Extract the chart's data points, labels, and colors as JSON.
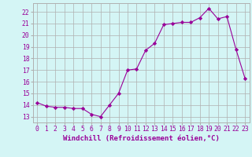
{
  "x": [
    0,
    1,
    2,
    3,
    4,
    5,
    6,
    7,
    8,
    9,
    10,
    11,
    12,
    13,
    14,
    15,
    16,
    17,
    18,
    19,
    20,
    21,
    22,
    23
  ],
  "y": [
    14.2,
    13.9,
    13.8,
    13.8,
    13.7,
    13.7,
    13.2,
    13.0,
    14.0,
    15.0,
    17.0,
    17.1,
    18.7,
    19.3,
    20.9,
    21.0,
    21.1,
    21.1,
    21.5,
    22.3,
    21.4,
    21.6,
    18.8,
    16.3
  ],
  "line_color": "#990099",
  "marker": "D",
  "marker_size": 2.2,
  "bg_color": "#d4f5f5",
  "grid_color": "#b0b0b0",
  "xlabel": "Windchill (Refroidissement éolien,°C)",
  "ylabel_ticks": [
    13,
    14,
    15,
    16,
    17,
    18,
    19,
    20,
    21,
    22
  ],
  "xlim": [
    -0.5,
    23.5
  ],
  "ylim": [
    12.5,
    22.75
  ],
  "tick_color": "#990099",
  "label_color": "#990099",
  "font_size": 5.8,
  "xlabel_fontsize": 6.5
}
